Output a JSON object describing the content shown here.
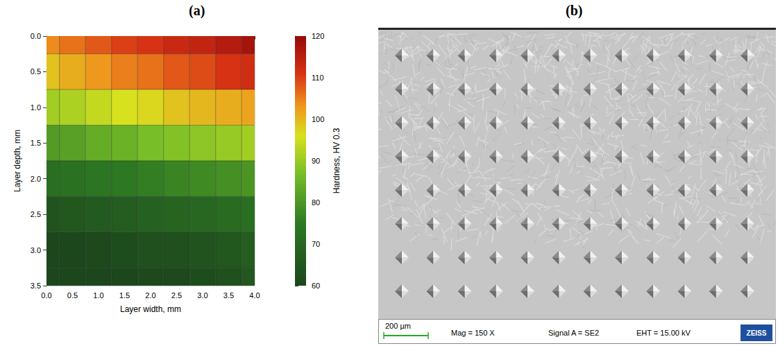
{
  "panel_labels": [
    "(a)",
    "(b)"
  ],
  "chart_data": {
    "type": "heatmap",
    "xlabel": "Layer width, mm",
    "ylabel": "Layer depth, mm",
    "colorbar_label": "Hardness, HV 0.3",
    "x": [
      0.0,
      0.5,
      1.0,
      1.5,
      2.0,
      2.5,
      3.0,
      3.5,
      4.0
    ],
    "y": [
      0.0,
      0.5,
      1.0,
      1.5,
      2.0,
      2.5,
      3.0,
      3.5
    ],
    "values": [
      [
        104,
        106,
        108,
        110,
        111,
        113,
        114,
        116,
        118
      ],
      [
        99,
        101,
        103,
        105,
        106,
        108,
        109,
        111,
        112
      ],
      [
        91,
        92,
        94,
        96,
        97,
        99,
        100,
        101,
        102
      ],
      [
        81,
        82,
        84,
        85,
        87,
        88,
        89,
        90,
        91
      ],
      [
        72,
        73,
        74,
        75,
        76,
        77,
        78,
        79,
        80
      ],
      [
        64,
        65,
        66,
        67,
        68,
        69,
        70,
        71,
        72
      ],
      [
        59,
        60,
        61,
        62,
        63,
        63,
        64,
        65,
        67
      ],
      [
        57,
        58,
        59,
        60,
        61,
        61,
        62,
        63,
        65
      ]
    ],
    "xlim": [
      0,
      4
    ],
    "xticks": [
      {
        "value": 0,
        "label": "0.0"
      },
      {
        "value": 0.5,
        "label": "0.5"
      },
      {
        "value": 1,
        "label": "1.0"
      },
      {
        "value": 1.5,
        "label": "1.5"
      },
      {
        "value": 2,
        "label": "2.0"
      },
      {
        "value": 2.5,
        "label": "2.5"
      },
      {
        "value": 3,
        "label": "3.0"
      },
      {
        "value": 3.5,
        "label": "3.5"
      },
      {
        "value": 4,
        "label": "4.0"
      }
    ],
    "ylim": [
      0,
      3.5
    ],
    "yticks": [
      {
        "value": 0,
        "label": "0.0"
      },
      {
        "value": 0.5,
        "label": "0.5"
      },
      {
        "value": 1,
        "label": "1.0"
      },
      {
        "value": 1.5,
        "label": "1.5"
      },
      {
        "value": 2,
        "label": "2.0"
      },
      {
        "value": 2.5,
        "label": "2.5"
      },
      {
        "value": 3,
        "label": "3.0"
      },
      {
        "value": 3.5,
        "label": "3.5"
      }
    ],
    "zlim": [
      60,
      120
    ],
    "zticks": [
      60,
      70,
      80,
      90,
      100,
      110,
      120
    ],
    "grid": true
  },
  "micrograph": {
    "scale_bar": "200 µm",
    "magnification": "Mag = 150 X",
    "signal": "Signal A = SE2",
    "voltage": "EHT = 15.00 kV",
    "logo": "ZEISS",
    "indent_rows": 8,
    "indent_columns": 12
  }
}
